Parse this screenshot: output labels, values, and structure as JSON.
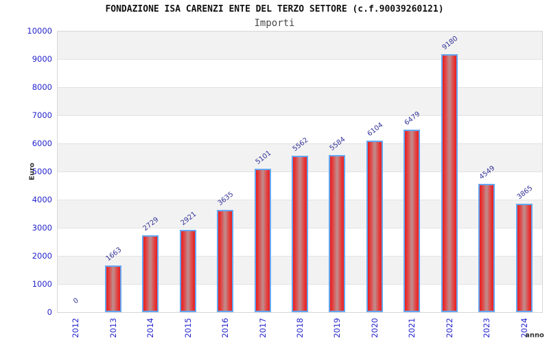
{
  "chart_data": {
    "type": "bar",
    "title": "FONDAZIONE ISA CARENZI ENTE DEL TERZO SETTORE (c.f.90039260121)",
    "subtitle": "Importi",
    "xlabel": "anno",
    "ylabel": "Euro",
    "categories": [
      "2012",
      "2013",
      "2014",
      "2015",
      "2016",
      "2017",
      "2018",
      "2019",
      "2020",
      "2021",
      "2022",
      "2023",
      "2024"
    ],
    "values": [
      0,
      1663,
      2729,
      2921,
      3635,
      5101,
      5562,
      5584,
      6104,
      6479,
      9180,
      4549,
      3865
    ],
    "value_labels": [
      "0",
      "1663",
      "2729",
      "2921",
      "3635",
      "5101",
      "5562",
      "5584",
      "6104",
      "6479",
      "9180",
      "4549",
      "3865"
    ],
    "ylim": [
      0,
      10000
    ],
    "ytick_step": 1000,
    "yticks": [
      "0",
      "1000",
      "2000",
      "3000",
      "4000",
      "5000",
      "6000",
      "7000",
      "8000",
      "9000",
      "10000"
    ],
    "grid": true,
    "legend": "none",
    "colors": {
      "bar_fill_edge": "#ea1c1c",
      "bar_fill_center": "#bf8f8f",
      "bar_border": "#64a7f2",
      "tick_label": "#2323cd",
      "value_label": "#333399",
      "title": "#111111",
      "subtitle": "#4a4a4a",
      "band": "#f2f2f2",
      "gridline": "#e2e2e2",
      "plot_border": "#d6d6d6"
    }
  }
}
